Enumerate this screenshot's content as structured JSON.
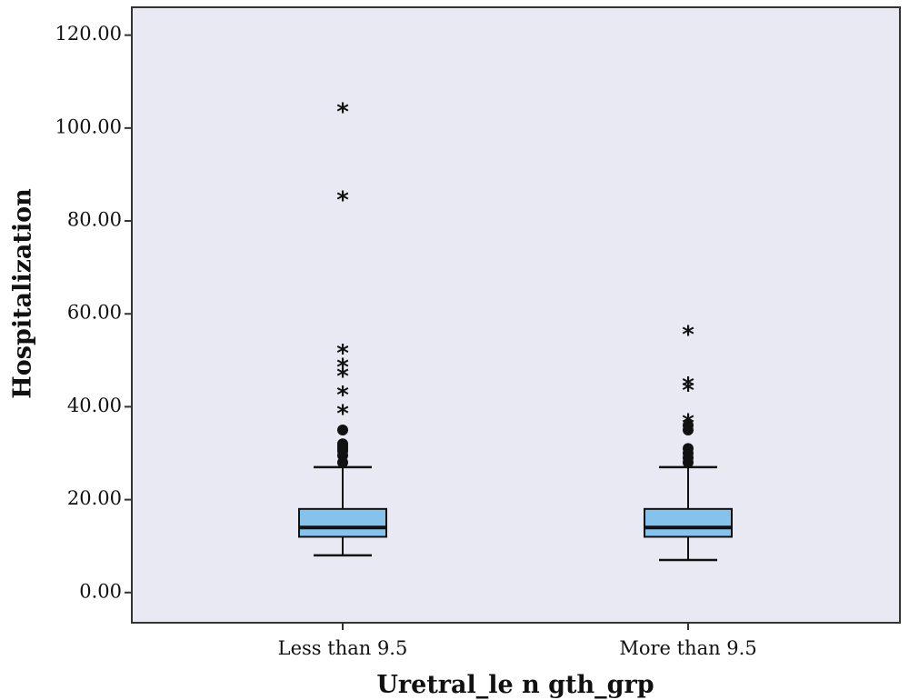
{
  "chart_data": {
    "type": "boxplot",
    "title": "",
    "xlabel": "Uretral_le n gth_grp",
    "ylabel": "Hospitalization",
    "ylim": [
      -6.5,
      126
    ],
    "yticks": [
      0,
      20,
      40,
      60,
      80,
      100,
      120
    ],
    "ytick_labels": [
      "0.00",
      "20.00",
      "40.00",
      "60.00",
      "80.00",
      "100.00",
      "120.00"
    ],
    "grid": false,
    "legend": "none",
    "colors": {
      "plot_background": "#e8e9f3",
      "box_fill": "#86c3ec",
      "frame": "#333333",
      "marks": "#111111"
    },
    "categories": [
      "Less than 9.5",
      "More than 9.5"
    ],
    "groups": [
      {
        "name": "Less than 9.5",
        "whisker_low": 8,
        "q1": 12,
        "median": 14,
        "q3": 18,
        "whisker_high": 27,
        "outliers_circle": [
          28,
          29.5,
          30.5,
          31,
          31.5,
          32,
          35
        ],
        "outliers_star": [
          39,
          43,
          47,
          49,
          52,
          85,
          104
        ]
      },
      {
        "name": "More than 9.5",
        "whisker_low": 7,
        "q1": 12,
        "median": 14,
        "q3": 18,
        "whisker_high": 27,
        "outliers_circle": [
          28,
          29,
          30,
          31,
          35,
          36
        ],
        "outliers_star": [
          37,
          44,
          45,
          56
        ]
      }
    ]
  }
}
